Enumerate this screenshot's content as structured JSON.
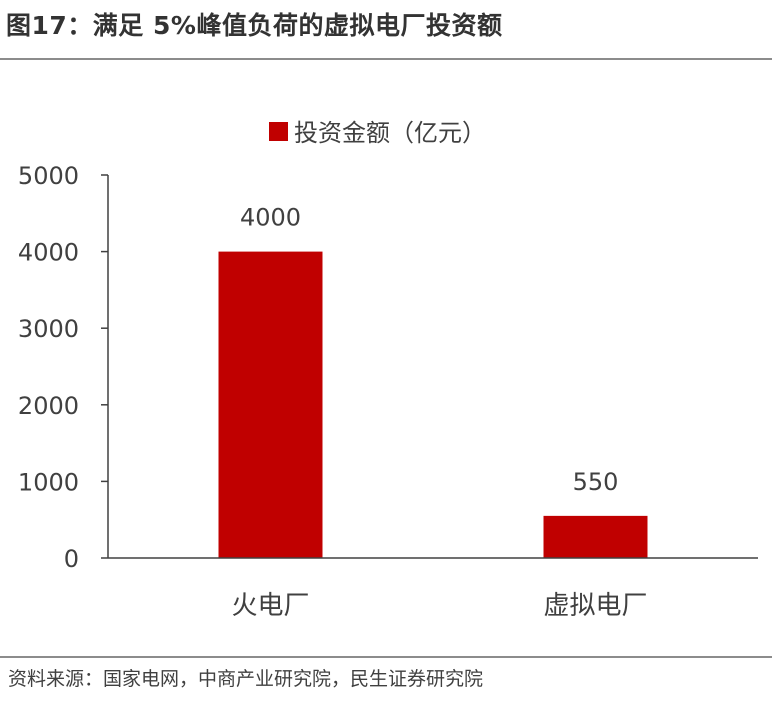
{
  "figure": {
    "title": "图17：满足 5%峰值负荷的虚拟电厂投资额",
    "source": "资料来源：国家电网，中商产业研究院，民生证券研究院"
  },
  "colors": {
    "bar": "#C00000",
    "axis": "#404040",
    "text": "#404040",
    "rule": "#8c8c8c"
  },
  "chart_data": {
    "type": "bar",
    "title": "",
    "xlabel": "",
    "ylabel": "",
    "categories": [
      "火电厂",
      "虚拟电厂"
    ],
    "series": [
      {
        "name": "投资金额（亿元）",
        "values": [
          4000,
          550
        ]
      }
    ],
    "data_labels": [
      "4000",
      "550"
    ],
    "ylim": [
      0,
      5000
    ],
    "yticks": [
      0,
      1000,
      2000,
      3000,
      4000,
      5000
    ],
    "grid": false,
    "legend_position": "top-center"
  }
}
